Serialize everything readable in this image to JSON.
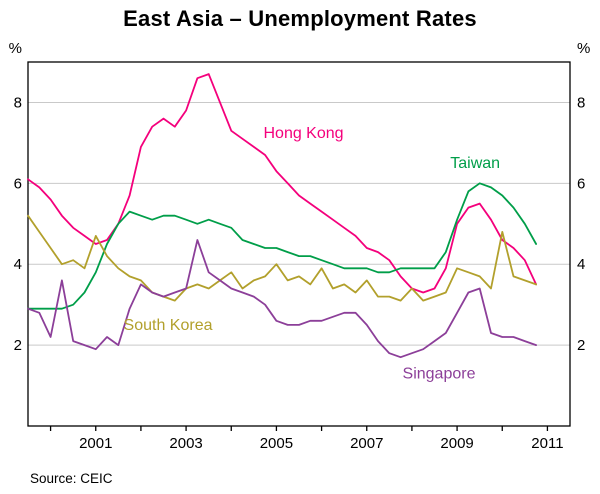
{
  "chart_data": {
    "type": "line",
    "title": "East Asia – Unemployment Rates",
    "source": "Source: CEIC",
    "unit_left": "%",
    "unit_right": "%",
    "grid": true,
    "legend_position": "inline-annotations",
    "ylim": [
      0,
      9
    ],
    "yticks": [
      2,
      4,
      6,
      8
    ],
    "xlim": [
      1999.5,
      2011.5
    ],
    "xticks": [
      2000,
      2001,
      2002,
      2003,
      2004,
      2005,
      2006,
      2007,
      2008,
      2009,
      2010,
      2011
    ],
    "xtick_labels": [
      "2001",
      "2003",
      "2005",
      "2007",
      "2009",
      "2011"
    ],
    "xtick_label_positions": [
      2001,
      2003,
      2005,
      2007,
      2009,
      2011
    ],
    "x_start": 1999.5,
    "x_step": 0.25,
    "series": [
      {
        "name": "Hong Kong",
        "color": "#f4007c",
        "values": [
          6.1,
          5.9,
          5.6,
          5.2,
          4.9,
          4.7,
          4.5,
          4.6,
          5.0,
          5.7,
          6.9,
          7.4,
          7.6,
          7.4,
          7.8,
          8.6,
          8.7,
          8.0,
          7.3,
          7.1,
          6.9,
          6.7,
          6.3,
          6.0,
          5.7,
          5.5,
          5.3,
          5.1,
          4.9,
          4.7,
          4.4,
          4.3,
          4.1,
          3.7,
          3.4,
          3.3,
          3.4,
          3.9,
          5.0,
          5.4,
          5.5,
          5.1,
          4.6,
          4.4,
          4.1,
          3.5
        ]
      },
      {
        "name": "Taiwan",
        "color": "#009e49",
        "values": [
          2.9,
          2.9,
          2.9,
          2.9,
          3.0,
          3.3,
          3.8,
          4.5,
          5.0,
          5.3,
          5.2,
          5.1,
          5.2,
          5.2,
          5.1,
          5.0,
          5.1,
          5.0,
          4.9,
          4.6,
          4.5,
          4.4,
          4.4,
          4.3,
          4.2,
          4.2,
          4.1,
          4.0,
          3.9,
          3.9,
          3.9,
          3.8,
          3.8,
          3.9,
          3.9,
          3.9,
          3.9,
          4.3,
          5.1,
          5.8,
          6.0,
          5.9,
          5.7,
          5.4,
          5.0,
          4.5
        ]
      },
      {
        "name": "South Korea",
        "color": "#b2a02c",
        "values": [
          5.2,
          4.8,
          4.4,
          4.0,
          4.1,
          3.9,
          4.7,
          4.2,
          3.9,
          3.7,
          3.6,
          3.3,
          3.2,
          3.1,
          3.4,
          3.5,
          3.4,
          3.6,
          3.8,
          3.4,
          3.6,
          3.7,
          4.0,
          3.6,
          3.7,
          3.5,
          3.9,
          3.4,
          3.5,
          3.3,
          3.6,
          3.2,
          3.2,
          3.1,
          3.4,
          3.1,
          3.2,
          3.3,
          3.9,
          3.8,
          3.7,
          3.4,
          4.8,
          3.7,
          3.6,
          3.5
        ]
      },
      {
        "name": "Singapore",
        "color": "#8c3f99",
        "values": [
          2.9,
          2.8,
          2.2,
          3.6,
          2.1,
          2.0,
          1.9,
          2.2,
          2.0,
          2.9,
          3.5,
          3.3,
          3.2,
          3.3,
          3.4,
          4.6,
          3.8,
          3.6,
          3.4,
          3.3,
          3.2,
          3.0,
          2.6,
          2.5,
          2.5,
          2.6,
          2.6,
          2.7,
          2.8,
          2.8,
          2.5,
          2.1,
          1.8,
          1.7,
          1.8,
          1.9,
          2.1,
          2.3,
          2.8,
          3.3,
          3.4,
          2.3,
          2.2,
          2.2,
          2.1,
          2.0
        ]
      }
    ],
    "annotations": [
      {
        "text": "Hong Kong",
        "x": 2005.6,
        "y": 7.25,
        "color": "#f4007c"
      },
      {
        "text": "Taiwan",
        "x": 2009.4,
        "y": 6.5,
        "color": "#009e49"
      },
      {
        "text": "South Korea",
        "x": 2002.6,
        "y": 2.5,
        "color": "#b2a02c"
      },
      {
        "text": "Singapore",
        "x": 2008.6,
        "y": 1.3,
        "color": "#8c3f99"
      }
    ],
    "style": {
      "gridline_color": "#c9c9c9",
      "axis_color": "#000000",
      "background": "#ffffff"
    }
  }
}
